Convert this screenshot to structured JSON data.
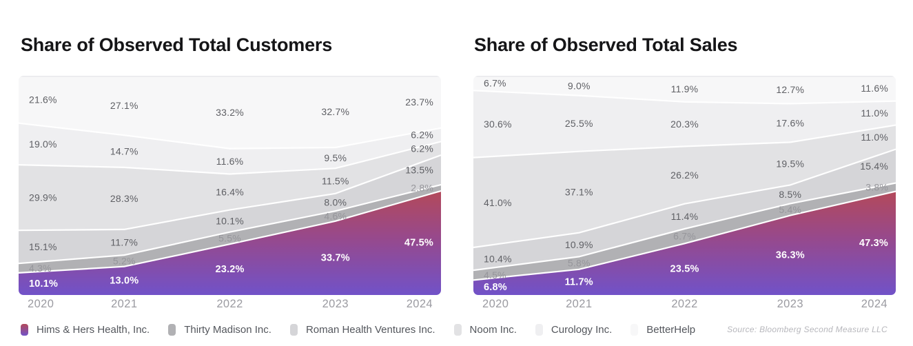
{
  "page": {
    "background": "#ffffff"
  },
  "source": {
    "text": "Source: Bloomberg Second Measure LLC"
  },
  "style": {
    "title_color": "#151517",
    "axis_label_color": "#9b9ba1",
    "legend_text_color": "#53565c",
    "source_text_color": "#b7b7bc",
    "separator_color": "#ffffff",
    "top_edge_color": "#e8e8eb",
    "hims_gradient_stops": [
      "#b3495a",
      "#97498c",
      "#7152c8"
    ]
  },
  "chart_data": [
    {
      "type": "area",
      "stacked": true,
      "stack_order": "bottom-to-top",
      "title": "Share of Observed Total Customers",
      "categories": [
        "2020",
        "2021",
        "2022",
        "2023",
        "2024"
      ],
      "ylim": [
        0,
        100
      ],
      "grid": false,
      "legend_position": "bottom",
      "value_format": "percent-1-decimal",
      "series": [
        {
          "name": "Hims & Hers Health, Inc.",
          "color": "gradient",
          "label_color": "#ffffff",
          "values": [
            10.1,
            13.0,
            23.2,
            33.7,
            47.5
          ]
        },
        {
          "name": "Thirty Madison Inc.",
          "color": "#b1b1b4",
          "label_color": "#96969b",
          "values": [
            4.3,
            5.2,
            5.5,
            4.6,
            2.8
          ]
        },
        {
          "name": "Roman Health Ventures Inc.",
          "color": "#d5d5d8",
          "label_color": "#5e5f64",
          "values": [
            15.1,
            11.7,
            10.1,
            8.0,
            13.5
          ]
        },
        {
          "name": "Noom Inc.",
          "color": "#e2e2e4",
          "label_color": "#5e5f64",
          "values": [
            29.9,
            28.3,
            16.4,
            11.5,
            6.2
          ]
        },
        {
          "name": "Curology Inc.",
          "color": "#efeff1",
          "label_color": "#5e5f64",
          "values": [
            19.0,
            14.7,
            11.6,
            9.5,
            6.2
          ]
        },
        {
          "name": "BetterHelp",
          "color": "#f7f7f8",
          "label_color": "#5e5f64",
          "values": [
            21.6,
            27.1,
            33.2,
            32.7,
            23.7
          ]
        }
      ]
    },
    {
      "type": "area",
      "stacked": true,
      "stack_order": "bottom-to-top",
      "title": "Share of Observed Total Sales",
      "categories": [
        "2020",
        "2021",
        "2022",
        "2023",
        "2024"
      ],
      "ylim": [
        0,
        100
      ],
      "grid": false,
      "legend_position": "bottom",
      "value_format": "percent-1-decimal",
      "series": [
        {
          "name": "Hims & Hers Health, Inc.",
          "color": "gradient",
          "label_color": "#ffffff",
          "values": [
            6.8,
            11.7,
            23.5,
            36.3,
            47.3
          ]
        },
        {
          "name": "Thirty Madison Inc.",
          "color": "#b1b1b4",
          "label_color": "#96969b",
          "values": [
            4.5,
            5.8,
            6.7,
            5.4,
            3.8
          ]
        },
        {
          "name": "Roman Health Ventures Inc.",
          "color": "#d5d5d8",
          "label_color": "#5e5f64",
          "values": [
            10.4,
            10.9,
            11.4,
            8.5,
            15.4
          ]
        },
        {
          "name": "Noom Inc.",
          "color": "#e2e2e4",
          "label_color": "#5e5f64",
          "values": [
            41.0,
            37.1,
            26.2,
            19.5,
            11.0
          ]
        },
        {
          "name": "Curology Inc.",
          "color": "#efeff1",
          "label_color": "#5e5f64",
          "values": [
            30.6,
            25.5,
            20.3,
            17.6,
            11.0
          ]
        },
        {
          "name": "BetterHelp",
          "color": "#f7f7f8",
          "label_color": "#5e5f64",
          "values": [
            6.7,
            9.0,
            11.9,
            12.7,
            11.6
          ]
        }
      ]
    }
  ]
}
